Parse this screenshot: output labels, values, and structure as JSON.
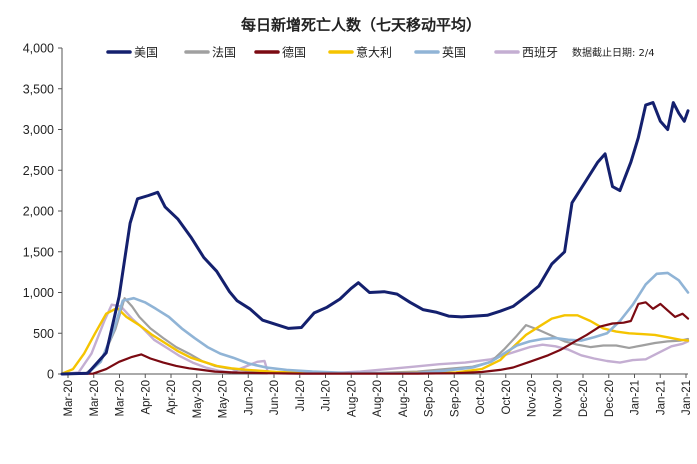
{
  "chart_data": {
    "type": "line",
    "title": "每日新增死亡人数（七天移动平均）",
    "xlabel": "",
    "ylabel": "",
    "ylim": [
      0,
      4000
    ],
    "yticks": [
      "0",
      "500",
      "1,000",
      "1,500",
      "2,000",
      "2,500",
      "3,000",
      "3,500",
      "4,000"
    ],
    "x_tick_labels": [
      "Mar-20",
      "Mar-20",
      "Mar-20",
      "Apr-20",
      "Apr-20",
      "May-20",
      "May-20",
      "Jun-20",
      "Jun-20",
      "Jul-20",
      "Jul-20",
      "Aug-20",
      "Aug-20",
      "Aug-20",
      "Sep-20",
      "Sep-20",
      "Oct-20",
      "Oct-20",
      "Nov-20",
      "Nov-20",
      "Dec-20",
      "Dec-20",
      "Jan-21",
      "Jan-21",
      "Jan-21"
    ],
    "x_range": [
      "2020-03-01",
      "2021-02-04"
    ],
    "legend_position": "top",
    "note": "数据截止日期: 2/4",
    "grid": false,
    "series": [
      {
        "name": "美国",
        "color": "#14206e",
        "width": 3,
        "points": [
          [
            "2020-03-01",
            0
          ],
          [
            "2020-03-15",
            10
          ],
          [
            "2020-03-25",
            260
          ],
          [
            "2020-04-01",
            950
          ],
          [
            "2020-04-07",
            1850
          ],
          [
            "2020-04-11",
            2150
          ],
          [
            "2020-04-17",
            2190
          ],
          [
            "2020-04-22",
            2230
          ],
          [
            "2020-04-26",
            2050
          ],
          [
            "2020-05-03",
            1900
          ],
          [
            "2020-05-10",
            1680
          ],
          [
            "2020-05-17",
            1430
          ],
          [
            "2020-05-24",
            1260
          ],
          [
            "2020-05-31",
            1010
          ],
          [
            "2020-06-04",
            900
          ],
          [
            "2020-06-11",
            800
          ],
          [
            "2020-06-18",
            660
          ],
          [
            "2020-06-25",
            610
          ],
          [
            "2020-07-02",
            560
          ],
          [
            "2020-07-09",
            570
          ],
          [
            "2020-07-16",
            750
          ],
          [
            "2020-07-23",
            820
          ],
          [
            "2020-07-30",
            920
          ],
          [
            "2020-08-05",
            1050
          ],
          [
            "2020-08-09",
            1120
          ],
          [
            "2020-08-15",
            1000
          ],
          [
            "2020-08-23",
            1010
          ],
          [
            "2020-08-30",
            980
          ],
          [
            "2020-09-06",
            880
          ],
          [
            "2020-09-13",
            790
          ],
          [
            "2020-09-20",
            760
          ],
          [
            "2020-09-27",
            710
          ],
          [
            "2020-10-04",
            700
          ],
          [
            "2020-10-11",
            710
          ],
          [
            "2020-10-18",
            720
          ],
          [
            "2020-10-25",
            770
          ],
          [
            "2020-11-01",
            830
          ],
          [
            "2020-11-08",
            950
          ],
          [
            "2020-11-15",
            1080
          ],
          [
            "2020-11-22",
            1350
          ],
          [
            "2020-11-29",
            1500
          ],
          [
            "2020-12-03",
            2100
          ],
          [
            "2020-12-10",
            2350
          ],
          [
            "2020-12-17",
            2600
          ],
          [
            "2020-12-21",
            2700
          ],
          [
            "2020-12-25",
            2300
          ],
          [
            "2020-12-29",
            2250
          ],
          [
            "2021-01-04",
            2600
          ],
          [
            "2021-01-08",
            2900
          ],
          [
            "2021-01-12",
            3300
          ],
          [
            "2021-01-16",
            3330
          ],
          [
            "2021-01-20",
            3100
          ],
          [
            "2021-01-24",
            3000
          ],
          [
            "2021-01-27",
            3330
          ],
          [
            "2021-01-30",
            3200
          ],
          [
            "2021-02-02",
            3100
          ],
          [
            "2021-02-04",
            3230
          ]
        ]
      },
      {
        "name": "法国",
        "color": "#a0a0a0",
        "width": 2.2,
        "points": [
          [
            "2020-03-01",
            0
          ],
          [
            "2020-03-14",
            10
          ],
          [
            "2020-03-22",
            150
          ],
          [
            "2020-03-30",
            550
          ],
          [
            "2020-04-04",
            930
          ],
          [
            "2020-04-08",
            830
          ],
          [
            "2020-04-12",
            700
          ],
          [
            "2020-04-18",
            560
          ],
          [
            "2020-04-25",
            440
          ],
          [
            "2020-05-02",
            330
          ],
          [
            "2020-05-09",
            250
          ],
          [
            "2020-05-16",
            160
          ],
          [
            "2020-05-23",
            100
          ],
          [
            "2020-05-30",
            70
          ],
          [
            "2020-06-10",
            40
          ],
          [
            "2020-06-25",
            25
          ],
          [
            "2020-07-10",
            15
          ],
          [
            "2020-08-01",
            10
          ],
          [
            "2020-08-20",
            15
          ],
          [
            "2020-09-10",
            30
          ],
          [
            "2020-09-25",
            60
          ],
          [
            "2020-10-10",
            90
          ],
          [
            "2020-10-20",
            150
          ],
          [
            "2020-10-27",
            300
          ],
          [
            "2020-11-03",
            470
          ],
          [
            "2020-11-08",
            600
          ],
          [
            "2020-11-15",
            540
          ],
          [
            "2020-11-22",
            470
          ],
          [
            "2020-11-29",
            400
          ],
          [
            "2020-12-06",
            360
          ],
          [
            "2020-12-13",
            330
          ],
          [
            "2020-12-20",
            350
          ],
          [
            "2020-12-27",
            350
          ],
          [
            "2021-01-03",
            320
          ],
          [
            "2021-01-10",
            350
          ],
          [
            "2021-01-17",
            380
          ],
          [
            "2021-01-24",
            400
          ],
          [
            "2021-01-31",
            410
          ],
          [
            "2021-02-04",
            430
          ]
        ]
      },
      {
        "name": "德国",
        "color": "#7b0a12",
        "width": 2.2,
        "points": [
          [
            "2020-03-01",
            0
          ],
          [
            "2020-03-18",
            5
          ],
          [
            "2020-03-25",
            60
          ],
          [
            "2020-04-01",
            150
          ],
          [
            "2020-04-08",
            210
          ],
          [
            "2020-04-13",
            240
          ],
          [
            "2020-04-18",
            190
          ],
          [
            "2020-04-25",
            140
          ],
          [
            "2020-05-02",
            100
          ],
          [
            "2020-05-09",
            70
          ],
          [
            "2020-05-16",
            50
          ],
          [
            "2020-05-23",
            30
          ],
          [
            "2020-06-01",
            20
          ],
          [
            "2020-06-20",
            10
          ],
          [
            "2020-07-10",
            5
          ],
          [
            "2020-08-10",
            5
          ],
          [
            "2020-09-10",
            5
          ],
          [
            "2020-10-01",
            10
          ],
          [
            "2020-10-15",
            25
          ],
          [
            "2020-10-25",
            50
          ],
          [
            "2020-11-01",
            80
          ],
          [
            "2020-11-10",
            150
          ],
          [
            "2020-11-20",
            230
          ],
          [
            "2020-11-27",
            300
          ],
          [
            "2020-12-04",
            390
          ],
          [
            "2020-12-11",
            480
          ],
          [
            "2020-12-18",
            580
          ],
          [
            "2020-12-25",
            620
          ],
          [
            "2020-12-31",
            630
          ],
          [
            "2021-01-04",
            650
          ],
          [
            "2021-01-08",
            860
          ],
          [
            "2021-01-12",
            880
          ],
          [
            "2021-01-16",
            800
          ],
          [
            "2021-01-20",
            860
          ],
          [
            "2021-01-24",
            780
          ],
          [
            "2021-01-28",
            700
          ],
          [
            "2021-02-01",
            740
          ],
          [
            "2021-02-04",
            680
          ]
        ]
      },
      {
        "name": "意大利",
        "color": "#f5c400",
        "width": 2.4,
        "points": [
          [
            "2020-03-01",
            5
          ],
          [
            "2020-03-07",
            60
          ],
          [
            "2020-03-13",
            250
          ],
          [
            "2020-03-19",
            500
          ],
          [
            "2020-03-25",
            740
          ],
          [
            "2020-03-31",
            810
          ],
          [
            "2020-04-05",
            700
          ],
          [
            "2020-04-12",
            600
          ],
          [
            "2020-04-19",
            480
          ],
          [
            "2020-04-26",
            380
          ],
          [
            "2020-05-03",
            280
          ],
          [
            "2020-05-10",
            200
          ],
          [
            "2020-05-17",
            150
          ],
          [
            "2020-05-24",
            100
          ],
          [
            "2020-06-01",
            70
          ],
          [
            "2020-06-10",
            50
          ],
          [
            "2020-06-25",
            25
          ],
          [
            "2020-07-15",
            12
          ],
          [
            "2020-08-15",
            8
          ],
          [
            "2020-09-15",
            15
          ],
          [
            "2020-10-01",
            20
          ],
          [
            "2020-10-15",
            60
          ],
          [
            "2020-10-25",
            170
          ],
          [
            "2020-11-01",
            330
          ],
          [
            "2020-11-08",
            480
          ],
          [
            "2020-11-15",
            580
          ],
          [
            "2020-11-22",
            680
          ],
          [
            "2020-11-29",
            720
          ],
          [
            "2020-12-06",
            720
          ],
          [
            "2020-12-13",
            650
          ],
          [
            "2020-12-20",
            560
          ],
          [
            "2020-12-27",
            520
          ],
          [
            "2021-01-03",
            500
          ],
          [
            "2021-01-10",
            490
          ],
          [
            "2021-01-17",
            480
          ],
          [
            "2021-01-24",
            450
          ],
          [
            "2021-01-31",
            420
          ],
          [
            "2021-02-04",
            410
          ]
        ]
      },
      {
        "name": "英国",
        "color": "#90b4d6",
        "width": 2.6,
        "points": [
          [
            "2020-03-01",
            0
          ],
          [
            "2020-03-15",
            10
          ],
          [
            "2020-03-22",
            150
          ],
          [
            "2020-03-29",
            530
          ],
          [
            "2020-04-03",
            900
          ],
          [
            "2020-04-09",
            930
          ],
          [
            "2020-04-15",
            880
          ],
          [
            "2020-04-21",
            800
          ],
          [
            "2020-04-28",
            700
          ],
          [
            "2020-05-05",
            560
          ],
          [
            "2020-05-12",
            440
          ],
          [
            "2020-05-19",
            330
          ],
          [
            "2020-05-26",
            250
          ],
          [
            "2020-06-02",
            200
          ],
          [
            "2020-06-10",
            130
          ],
          [
            "2020-06-20",
            80
          ],
          [
            "2020-07-01",
            50
          ],
          [
            "2020-07-15",
            30
          ],
          [
            "2020-08-01",
            15
          ],
          [
            "2020-08-20",
            10
          ],
          [
            "2020-09-10",
            10
          ],
          [
            "2020-09-25",
            40
          ],
          [
            "2020-10-10",
            80
          ],
          [
            "2020-10-20",
            150
          ],
          [
            "2020-10-27",
            250
          ],
          [
            "2020-11-03",
            350
          ],
          [
            "2020-11-10",
            400
          ],
          [
            "2020-11-17",
            430
          ],
          [
            "2020-11-24",
            440
          ],
          [
            "2020-12-01",
            420
          ],
          [
            "2020-12-08",
            410
          ],
          [
            "2020-12-15",
            450
          ],
          [
            "2020-12-22",
            500
          ],
          [
            "2020-12-29",
            650
          ],
          [
            "2021-01-05",
            850
          ],
          [
            "2021-01-12",
            1100
          ],
          [
            "2021-01-18",
            1230
          ],
          [
            "2021-01-24",
            1240
          ],
          [
            "2021-01-30",
            1150
          ],
          [
            "2021-02-04",
            1000
          ]
        ]
      },
      {
        "name": "西班牙",
        "color": "#c4aed2",
        "width": 2.4,
        "points": [
          [
            "2020-03-01",
            0
          ],
          [
            "2020-03-10",
            20
          ],
          [
            "2020-03-17",
            250
          ],
          [
            "2020-03-24",
            650
          ],
          [
            "2020-03-28",
            850
          ],
          [
            "2020-04-02",
            830
          ],
          [
            "2020-04-08",
            680
          ],
          [
            "2020-04-14",
            560
          ],
          [
            "2020-04-20",
            420
          ],
          [
            "2020-04-27",
            320
          ],
          [
            "2020-05-04",
            220
          ],
          [
            "2020-05-11",
            140
          ],
          [
            "2020-05-18",
            80
          ],
          [
            "2020-05-25",
            40
          ],
          [
            "2020-06-01",
            20
          ],
          [
            "2020-06-15",
            150
          ],
          [
            "2020-06-19",
            160
          ],
          [
            "2020-06-21",
            10
          ],
          [
            "2020-07-01",
            5
          ],
          [
            "2020-07-20",
            5
          ],
          [
            "2020-08-10",
            30
          ],
          [
            "2020-08-25",
            60
          ],
          [
            "2020-09-08",
            90
          ],
          [
            "2020-09-22",
            120
          ],
          [
            "2020-10-06",
            140
          ],
          [
            "2020-10-20",
            180
          ],
          [
            "2020-11-03",
            280
          ],
          [
            "2020-11-10",
            330
          ],
          [
            "2020-11-17",
            360
          ],
          [
            "2020-11-24",
            340
          ],
          [
            "2020-12-01",
            300
          ],
          [
            "2020-12-08",
            230
          ],
          [
            "2020-12-15",
            190
          ],
          [
            "2020-12-22",
            160
          ],
          [
            "2020-12-29",
            140
          ],
          [
            "2021-01-05",
            170
          ],
          [
            "2021-01-12",
            180
          ],
          [
            "2021-01-19",
            260
          ],
          [
            "2021-01-26",
            340
          ],
          [
            "2021-02-01",
            370
          ],
          [
            "2021-02-04",
            400
          ]
        ]
      }
    ]
  }
}
